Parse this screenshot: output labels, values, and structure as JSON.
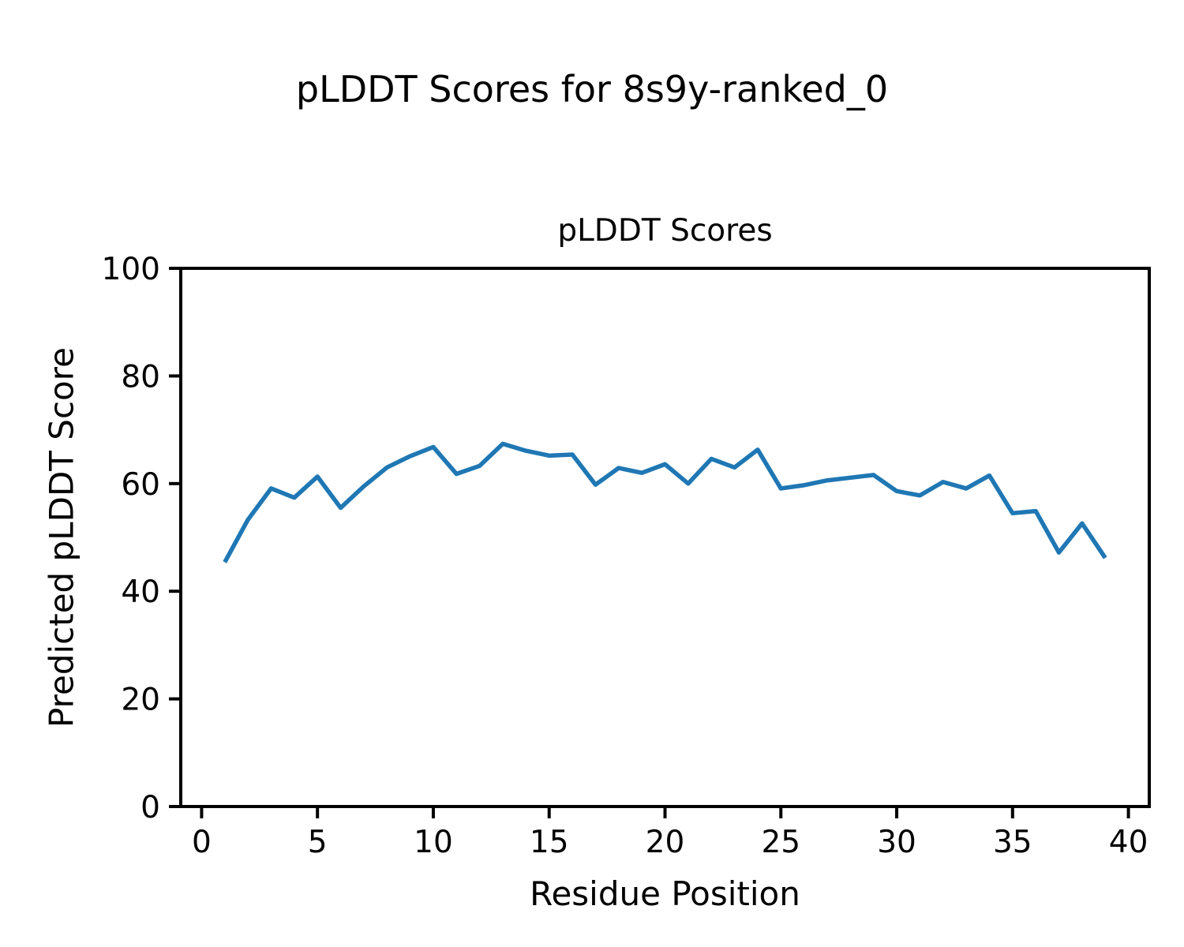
{
  "figure": {
    "background": "#ffffff",
    "suptitle": "pLDDT Scores for 8s9y-ranked_0"
  },
  "chart_data": {
    "type": "line",
    "title": "pLDDT Scores",
    "xlabel": "Residue Position",
    "ylabel": "Predicted pLDDT Score",
    "x": [
      1,
      2,
      3,
      4,
      5,
      6,
      7,
      8,
      9,
      10,
      11,
      12,
      13,
      14,
      15,
      16,
      17,
      18,
      19,
      20,
      21,
      22,
      23,
      24,
      25,
      26,
      27,
      28,
      29,
      30,
      31,
      32,
      33,
      34,
      35,
      36,
      37,
      38,
      39
    ],
    "y": [
      45.4,
      53.3,
      59.1,
      57.4,
      61.3,
      55.5,
      59.5,
      63.0,
      65.1,
      66.8,
      61.8,
      63.3,
      67.4,
      66.1,
      65.2,
      65.4,
      59.8,
      62.9,
      62.0,
      63.6,
      60.0,
      64.6,
      63.0,
      66.3,
      59.1,
      59.7,
      60.6,
      61.1,
      61.6,
      58.6,
      57.8,
      60.3,
      59.1,
      61.5,
      54.5,
      54.9,
      47.2,
      52.6,
      46.2
    ],
    "xlim": [
      -0.9,
      40.9
    ],
    "ylim": [
      0,
      100
    ],
    "xticks": [
      0,
      5,
      10,
      15,
      20,
      25,
      30,
      35,
      40
    ],
    "yticks": [
      0,
      20,
      40,
      60,
      80,
      100
    ],
    "line_color": "#1f77b4",
    "axis_color": "#000000",
    "grid": false,
    "legend": null
  }
}
